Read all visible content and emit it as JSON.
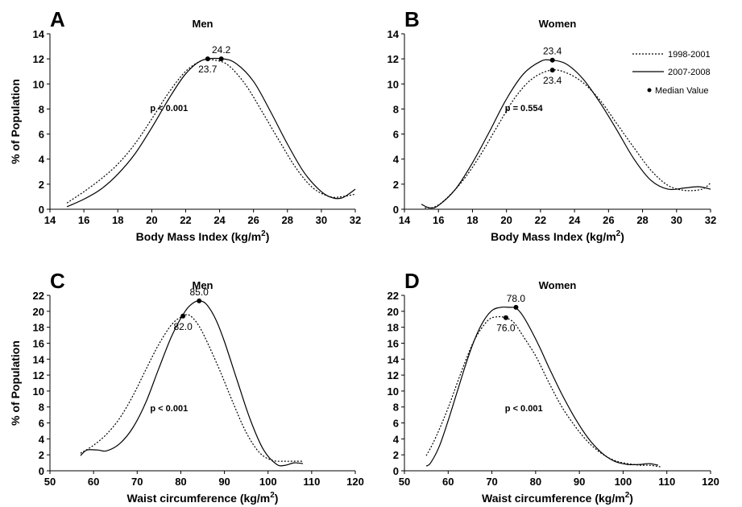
{
  "legend": {
    "position": "top-right",
    "entries": [
      {
        "label": "1998-2001",
        "style": "dotted"
      },
      {
        "label": "2007-2008",
        "style": "solid"
      },
      {
        "label": "Median Value",
        "style": "marker"
      }
    ]
  },
  "chart_data": [
    {
      "type": "line",
      "panel": "A",
      "title": "Men",
      "xlabel": "Body Mass Index (kg/m",
      "xlabel_sup": "2",
      "xlabel_end": ")",
      "ylabel": "% of Population",
      "xlim": [
        14,
        32
      ],
      "ylim": [
        0,
        14
      ],
      "xticks": [
        "14",
        "16",
        "18",
        "20",
        "22",
        "24",
        "26",
        "28",
        "30",
        "32"
      ],
      "yticks": [
        "0",
        "2",
        "4",
        "6",
        "8",
        "10",
        "12",
        "14"
      ],
      "pvalue": "p < 0.001",
      "series": [
        {
          "name": "1998-2001",
          "style": "dotted",
          "x": [
            15,
            16,
            17,
            18,
            19,
            20,
            21,
            22,
            23,
            23.7,
            24.5,
            25.5,
            26.5,
            27.5,
            28.5,
            29.5,
            30.5,
            31.2,
            32
          ],
          "y": [
            0.5,
            1.4,
            2.4,
            3.6,
            5.2,
            7.2,
            9.3,
            11.0,
            11.9,
            11.9,
            11.5,
            10.0,
            7.8,
            5.5,
            3.3,
            1.7,
            1.0,
            1.0,
            1.2
          ]
        },
        {
          "name": "2007-2008",
          "style": "solid",
          "x": [
            15,
            16,
            17,
            18,
            19,
            20,
            21,
            22,
            23,
            24.2,
            25,
            26,
            27,
            28,
            29,
            30,
            30.7,
            31.2,
            31.6,
            32
          ],
          "y": [
            0.2,
            0.8,
            1.6,
            2.8,
            4.4,
            6.5,
            8.8,
            10.8,
            11.9,
            12.0,
            11.6,
            10.2,
            7.8,
            5.2,
            2.9,
            1.4,
            0.9,
            0.9,
            1.2,
            1.6
          ]
        }
      ],
      "medians": [
        {
          "label": "23.7",
          "x": 23.3,
          "y": 12.0,
          "label_pos": "below"
        },
        {
          "label": "24.2",
          "x": 24.1,
          "y": 12.0,
          "label_pos": "above"
        }
      ]
    },
    {
      "type": "line",
      "panel": "B",
      "title": "Women",
      "xlabel": "Body Mass Index (kg/m",
      "xlabel_sup": "2",
      "xlabel_end": ")",
      "ylabel": "",
      "xlim": [
        14,
        32
      ],
      "ylim": [
        0,
        14
      ],
      "xticks": [
        "14",
        "16",
        "18",
        "20",
        "22",
        "24",
        "26",
        "28",
        "30",
        "32"
      ],
      "yticks": [
        "0",
        "2",
        "4",
        "6",
        "8",
        "10",
        "12",
        "14"
      ],
      "pvalue": "p = 0.554",
      "series": [
        {
          "name": "1998-2001",
          "style": "dotted",
          "x": [
            15.2,
            15.8,
            16.5,
            17.5,
            18.5,
            19.5,
            20.5,
            21.5,
            22.6,
            23.5,
            24.5,
            25.5,
            26.5,
            27.5,
            28.5,
            29.5,
            30.5,
            31.5,
            32
          ],
          "y": [
            0.1,
            0.2,
            0.9,
            2.4,
            4.4,
            6.7,
            8.9,
            10.4,
            11.1,
            10.9,
            10.1,
            8.7,
            6.8,
            4.9,
            3.1,
            1.9,
            1.5,
            1.6,
            2.1
          ]
        },
        {
          "name": "2007-2008",
          "style": "solid",
          "x": [
            15,
            15.5,
            16,
            17,
            18,
            19,
            20,
            21,
            22,
            22.6,
            23.5,
            24.5,
            25.5,
            26.5,
            27.5,
            28.5,
            29.5,
            30.5,
            31.3,
            32
          ],
          "y": [
            0.4,
            0.1,
            0.3,
            1.6,
            3.7,
            6.2,
            8.8,
            10.8,
            11.8,
            11.9,
            11.6,
            10.4,
            8.5,
            6.3,
            4.0,
            2.3,
            1.6,
            1.7,
            1.8,
            1.6
          ]
        }
      ],
      "medians": [
        {
          "label": "23.4",
          "x": 22.7,
          "y": 11.9,
          "label_pos": "above"
        },
        {
          "label": "23.4",
          "x": 22.7,
          "y": 11.1,
          "label_pos": "below"
        }
      ]
    },
    {
      "type": "line",
      "panel": "C",
      "title": "Men",
      "xlabel": "Waist circumference (kg/m",
      "xlabel_sup": "2",
      "xlabel_end": ")",
      "ylabel": "% of Population",
      "xlim": [
        50,
        120
      ],
      "ylim": [
        0,
        22
      ],
      "xticks": [
        "50",
        "60",
        "70",
        "80",
        "90",
        "100",
        "110",
        "120"
      ],
      "yticks": [
        "0",
        "2",
        "4",
        "6",
        "8",
        "10",
        "12",
        "14",
        "16",
        "18",
        "20",
        "22"
      ],
      "pvalue": "p < 0.001",
      "series": [
        {
          "name": "1998-2001",
          "style": "dotted",
          "x": [
            57,
            60,
            63,
            66,
            69,
            72,
            75,
            78,
            80.5,
            82,
            84,
            86,
            89,
            92,
            95,
            98,
            101,
            104,
            106,
            108
          ],
          "y": [
            2.2,
            3.2,
            4.6,
            6.6,
            9.4,
            12.7,
            15.9,
            18.4,
            19.4,
            19.5,
            18.3,
            16.2,
            12.5,
            8.5,
            4.8,
            2.3,
            1.3,
            1.2,
            1.2,
            1.2
          ]
        },
        {
          "name": "2007-2008",
          "style": "solid",
          "x": [
            57,
            58.5,
            61,
            63,
            66,
            69,
            72,
            75,
            78,
            81,
            83,
            84.5,
            86,
            88,
            90,
            93,
            96,
            99,
            102,
            104,
            106,
            108
          ],
          "y": [
            1.9,
            2.6,
            2.6,
            2.5,
            3.4,
            5.4,
            8.6,
            12.9,
            17.0,
            20.0,
            21.1,
            21.3,
            20.8,
            19.0,
            16.2,
            11.2,
            6.3,
            2.6,
            0.8,
            0.7,
            1.0,
            0.9
          ]
        }
      ],
      "medians": [
        {
          "label": "82.0",
          "x": 80.5,
          "y": 19.4,
          "label_pos": "below"
        },
        {
          "label": "85.0",
          "x": 84.2,
          "y": 21.3,
          "label_pos": "above"
        }
      ]
    },
    {
      "type": "line",
      "panel": "D",
      "title": "Women",
      "xlabel": "Waist circumference (kg/m",
      "xlabel_sup": "2",
      "xlabel_end": ")",
      "ylabel": "",
      "xlim": [
        50,
        120
      ],
      "ylim": [
        0,
        22
      ],
      "xticks": [
        "50",
        "60",
        "70",
        "80",
        "90",
        "100",
        "110",
        "120"
      ],
      "yticks": [
        "0",
        "2",
        "4",
        "6",
        "8",
        "10",
        "12",
        "14",
        "16",
        "18",
        "20",
        "22"
      ],
      "pvalue": "p < 0.001",
      "series": [
        {
          "name": "1998-2001",
          "style": "dotted",
          "x": [
            55,
            57,
            60,
            63,
            66,
            69,
            71,
            73,
            75,
            77,
            80,
            83,
            86,
            89,
            92,
            95,
            98,
            101,
            104,
            106,
            108.5
          ],
          "y": [
            1.9,
            4.0,
            7.9,
            12.4,
            16.4,
            18.8,
            19.3,
            19.2,
            18.6,
            17.0,
            14.4,
            11.1,
            8.0,
            5.6,
            3.6,
            2.2,
            1.3,
            0.9,
            0.7,
            0.7,
            0.5
          ]
        },
        {
          "name": "2007-2008",
          "style": "solid",
          "x": [
            55,
            56,
            58,
            60,
            62,
            64,
            66,
            68,
            70,
            72,
            74,
            75.5,
            77,
            79,
            81,
            83,
            86,
            89,
            92,
            95,
            98,
            101,
            104,
            106,
            108
          ],
          "y": [
            0.6,
            1.0,
            3.1,
            6.3,
            9.8,
            13.3,
            16.4,
            18.7,
            20.1,
            20.5,
            20.5,
            20.4,
            19.5,
            17.6,
            15.4,
            13.0,
            9.6,
            6.6,
            4.1,
            2.3,
            1.2,
            0.8,
            0.8,
            0.9,
            0.7
          ]
        }
      ],
      "medians": [
        {
          "label": "78.0",
          "x": 75.5,
          "y": 20.5,
          "label_pos": "above"
        },
        {
          "label": "76.0",
          "x": 73.2,
          "y": 19.2,
          "label_pos": "below"
        }
      ]
    }
  ]
}
